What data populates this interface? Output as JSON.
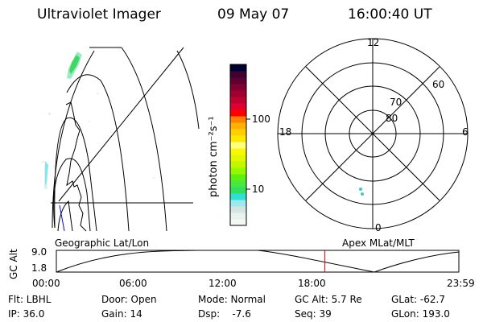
{
  "header": {
    "instrument": "Ultraviolet Imager",
    "date": "09 May 07",
    "time": "16:00:40 UT"
  },
  "colorbar": {
    "label": "photon cm⁻²s⁻¹",
    "ticks": [
      "100",
      "10"
    ],
    "colors": [
      "#f4f8f4",
      "#e8f2ec",
      "#d4e4e4",
      "#98ecf0",
      "#30e0d8",
      "#30e060",
      "#48e840",
      "#60f010",
      "#98f800",
      "#c0f800",
      "#e0f800",
      "#f8f800",
      "#ffff80",
      "#ffe800",
      "#ffd000",
      "#ffb000",
      "#ff8000",
      "#ff0000",
      "#e00030",
      "#c00030",
      "#a00030",
      "#800030",
      "#600030",
      "#400030",
      "#000030"
    ]
  },
  "polar": {
    "mlt_labels": [
      "12",
      "18",
      "6",
      "0"
    ],
    "lat_labels": [
      "60",
      "70",
      "80"
    ]
  },
  "timeline": {
    "left_label": "Geographic Lat/Lon",
    "right_label": "Apex MLat/MLT",
    "ylabel": "GC Alt",
    "y_ticks": [
      "9.0",
      "1.8"
    ],
    "x_ticks": [
      "00:00",
      "06:00",
      "12:00",
      "18:00",
      "23:59"
    ],
    "current_time_fraction": 0.6672,
    "marker_color": "#e00000"
  },
  "status": [
    [
      "Flt: LBHL",
      "IP: 36.0"
    ],
    [
      "Door: Open",
      "Gain: 14"
    ],
    [
      "Mode: Normal",
      "Dsp:    -7.6"
    ],
    [
      "GC Alt: 5.7 Re",
      "Seq: 39"
    ],
    [
      "GLat: -62.7",
      "GLon: 193.0"
    ]
  ]
}
